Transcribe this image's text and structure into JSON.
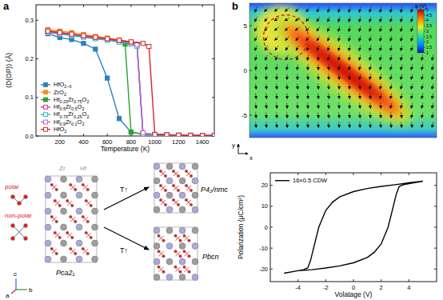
{
  "panels": [
    "a",
    "b"
  ],
  "chart_data": [
    {
      "type": "line",
      "y_label": "⟨D(OP)⟩ (Å)",
      "x_label": "Temperature (K)",
      "xlim": [
        0,
        1500
      ],
      "ylim": [
        0,
        0.34
      ],
      "xticks": [
        200,
        400,
        600,
        800,
        1000,
        1200,
        1400
      ],
      "yticks": [
        {
          "value": 0,
          "label": "0.0"
        },
        {
          "value": 0.1,
          "label": "0.1"
        },
        {
          "value": 0.2,
          "label": "0.2"
        },
        {
          "value": 0.3,
          "label": "0.3"
        }
      ],
      "grid": false,
      "legend": "lower left",
      "series": [
        {
          "name": "HfO2−δ",
          "color": "#2f7fc1",
          "marker": "square",
          "x": [
            100,
            200,
            300,
            400,
            500,
            600,
            700,
            800,
            900,
            1000,
            1100,
            1200,
            1300,
            1400,
            1500
          ],
          "values": [
            0.265,
            0.255,
            0.25,
            0.24,
            0.225,
            0.15,
            0.045,
            0.01,
            0.005,
            0.004,
            0.003,
            0.002,
            0.002,
            0.001,
            0.001
          ]
        },
        {
          "name": "ZrO2",
          "color": "#ff8c1a",
          "marker": "square",
          "x": [
            100,
            200,
            300,
            400,
            500,
            600,
            700,
            800,
            850,
            900,
            1000,
            1100,
            1200,
            1300,
            1400,
            1500
          ],
          "values": [
            0.276,
            0.272,
            0.268,
            0.263,
            0.258,
            0.254,
            0.249,
            0.244,
            0.238,
            0.006,
            0.004,
            0.003,
            0.002,
            0.002,
            0.001,
            0.001
          ]
        },
        {
          "name": "Hf0.25Zr0.75O2",
          "color": "#2ca02c",
          "marker": "square",
          "x": [
            100,
            200,
            300,
            400,
            500,
            600,
            700,
            750,
            800,
            900,
            1000,
            1100,
            1200,
            1300,
            1400,
            1500
          ],
          "values": [
            0.272,
            0.268,
            0.264,
            0.259,
            0.255,
            0.251,
            0.246,
            0.238,
            0.01,
            0.005,
            0.003,
            0.002,
            0.002,
            0.001,
            0.001,
            0.001
          ]
        },
        {
          "name": "Hf0.5Zr0.5O2",
          "color": "#e7298a",
          "marker": "open-square",
          "x": [
            100,
            200,
            300,
            400,
            500,
            600,
            700,
            800,
            850,
            900,
            1000,
            1100,
            1200,
            1300,
            1400,
            1500
          ],
          "values": [
            0.27,
            0.266,
            0.262,
            0.258,
            0.254,
            0.25,
            0.246,
            0.241,
            0.236,
            0.007,
            0.004,
            0.003,
            0.002,
            0.002,
            0.001,
            0.001
          ]
        },
        {
          "name": "Hf0.75Zr0.25O2",
          "color": "#17becf",
          "marker": "open-square",
          "x": [
            100,
            200,
            300,
            400,
            500,
            600,
            700,
            800,
            850,
            900,
            1000,
            1100,
            1200,
            1300,
            1400,
            1500
          ],
          "values": [
            0.268,
            0.264,
            0.26,
            0.256,
            0.252,
            0.248,
            0.243,
            0.238,
            0.232,
            0.005,
            0.003,
            0.002,
            0.002,
            0.001,
            0.001,
            0.001
          ]
        },
        {
          "name": "Hf0.9Zr0.1O2",
          "color": "#c05fd0",
          "marker": "open-square",
          "x": [
            100,
            200,
            300,
            400,
            500,
            600,
            700,
            800,
            850,
            900,
            1000,
            1100,
            1200,
            1300,
            1400,
            1500
          ],
          "values": [
            0.271,
            0.267,
            0.263,
            0.259,
            0.255,
            0.251,
            0.247,
            0.242,
            0.237,
            0.008,
            0.004,
            0.003,
            0.002,
            0.002,
            0.001,
            0.001
          ]
        },
        {
          "name": "HfO2",
          "color": "#d62728",
          "marker": "open-square",
          "x": [
            100,
            200,
            300,
            400,
            500,
            600,
            700,
            800,
            900,
            950,
            1000,
            1100,
            1200,
            1300,
            1400,
            1500
          ],
          "values": [
            0.272,
            0.268,
            0.264,
            0.26,
            0.256,
            0.252,
            0.248,
            0.244,
            0.24,
            0.232,
            0.004,
            0.003,
            0.002,
            0.001,
            0.001,
            0.001
          ]
        }
      ]
    },
    {
      "type": "line",
      "x_label": "Volatage (V)",
      "y_label": "Polarization (μC/cm²)",
      "xlim": [
        -6,
        6
      ],
      "ylim": [
        -26,
        26
      ],
      "xticks": [
        -4,
        -2,
        0,
        2,
        4
      ],
      "yticks": [
        -20,
        -10,
        0,
        10,
        20
      ],
      "grid": false,
      "legend": "upper left",
      "series": [
        {
          "name": "16×0.5 CDW",
          "color": "#000000",
          "line_style": "solid",
          "x": [
            5,
            4,
            3,
            2,
            1,
            0,
            -1,
            -1.5,
            -2,
            -2.5,
            -2.8,
            -3.1,
            -3.3,
            -3.6,
            -4,
            -5,
            -4,
            -3,
            -2,
            -1,
            0,
            1,
            1.5,
            2,
            2.5,
            2.8,
            3.1,
            3.3,
            3.6,
            4,
            5
          ],
          "values": [
            22,
            21.2,
            20.3,
            19.5,
            18.5,
            17,
            14.5,
            12,
            8,
            0,
            -8,
            -16,
            -19.5,
            -20.3,
            -20.8,
            -22,
            -20.8,
            -20.3,
            -19.5,
            -18.5,
            -17,
            -14.5,
            -12,
            -8,
            0,
            8,
            16,
            19.5,
            20.3,
            20.8,
            22
          ]
        }
      ]
    }
  ],
  "diagram": {
    "motifs": [
      "polar",
      "non-polar"
    ],
    "atoms": [
      "Zr",
      "Hf"
    ],
    "phases": [
      "Pca2₁",
      "P4₂/nmc",
      "Pbcn"
    ],
    "transitions": [
      "T↑",
      "T↑"
    ],
    "axes": [
      "c",
      "b",
      "a"
    ]
  },
  "field_map": {
    "x_label": "x",
    "y_label": "y",
    "xlim": [
      -9,
      9
    ],
    "ylim": [
      -7.5,
      7.5
    ],
    "yticks": [
      5,
      0,
      -5
    ],
    "colorbar_title": "φ (V)",
    "colorbar_range": [
      1,
      5
    ],
    "colorbar_ticks": [
      1,
      1.5,
      2,
      2.5,
      3,
      3.5,
      4,
      4.5,
      5
    ]
  }
}
